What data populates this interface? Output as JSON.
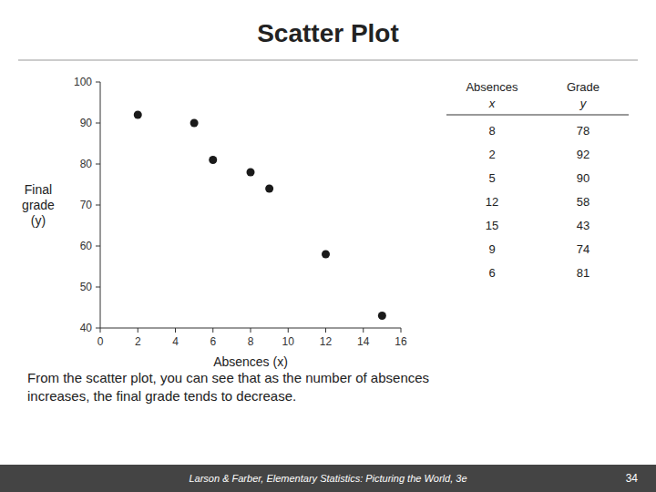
{
  "chart_data": {
    "type": "scatter",
    "title": "Scatter Plot",
    "x": [
      8,
      2,
      5,
      12,
      15,
      9,
      6
    ],
    "values": [
      78,
      92,
      90,
      58,
      43,
      74,
      81
    ],
    "color": "#1a1a1a",
    "xlabel": "Absences (x)",
    "ylabel": "Final\ngrade\n(y)",
    "xlim": [
      0,
      16
    ],
    "ylim": [
      40,
      100
    ],
    "xticks": [
      0,
      2,
      4,
      6,
      8,
      10,
      12,
      14,
      16
    ],
    "yticks": [
      40,
      50,
      60,
      70,
      80,
      90,
      100
    ],
    "annotations": [
      "From the scatter plot, you can see that as the number of absences\nincreases, the final grade tends to decrease."
    ]
  },
  "page": {
    "table_headers": [
      [
        "Absences",
        "x"
      ],
      [
        "Grade",
        "y"
      ]
    ],
    "footer_text": "Larson & Farber,  Elementary Statistics: Picturing the World,  3e",
    "page_number": "34"
  }
}
